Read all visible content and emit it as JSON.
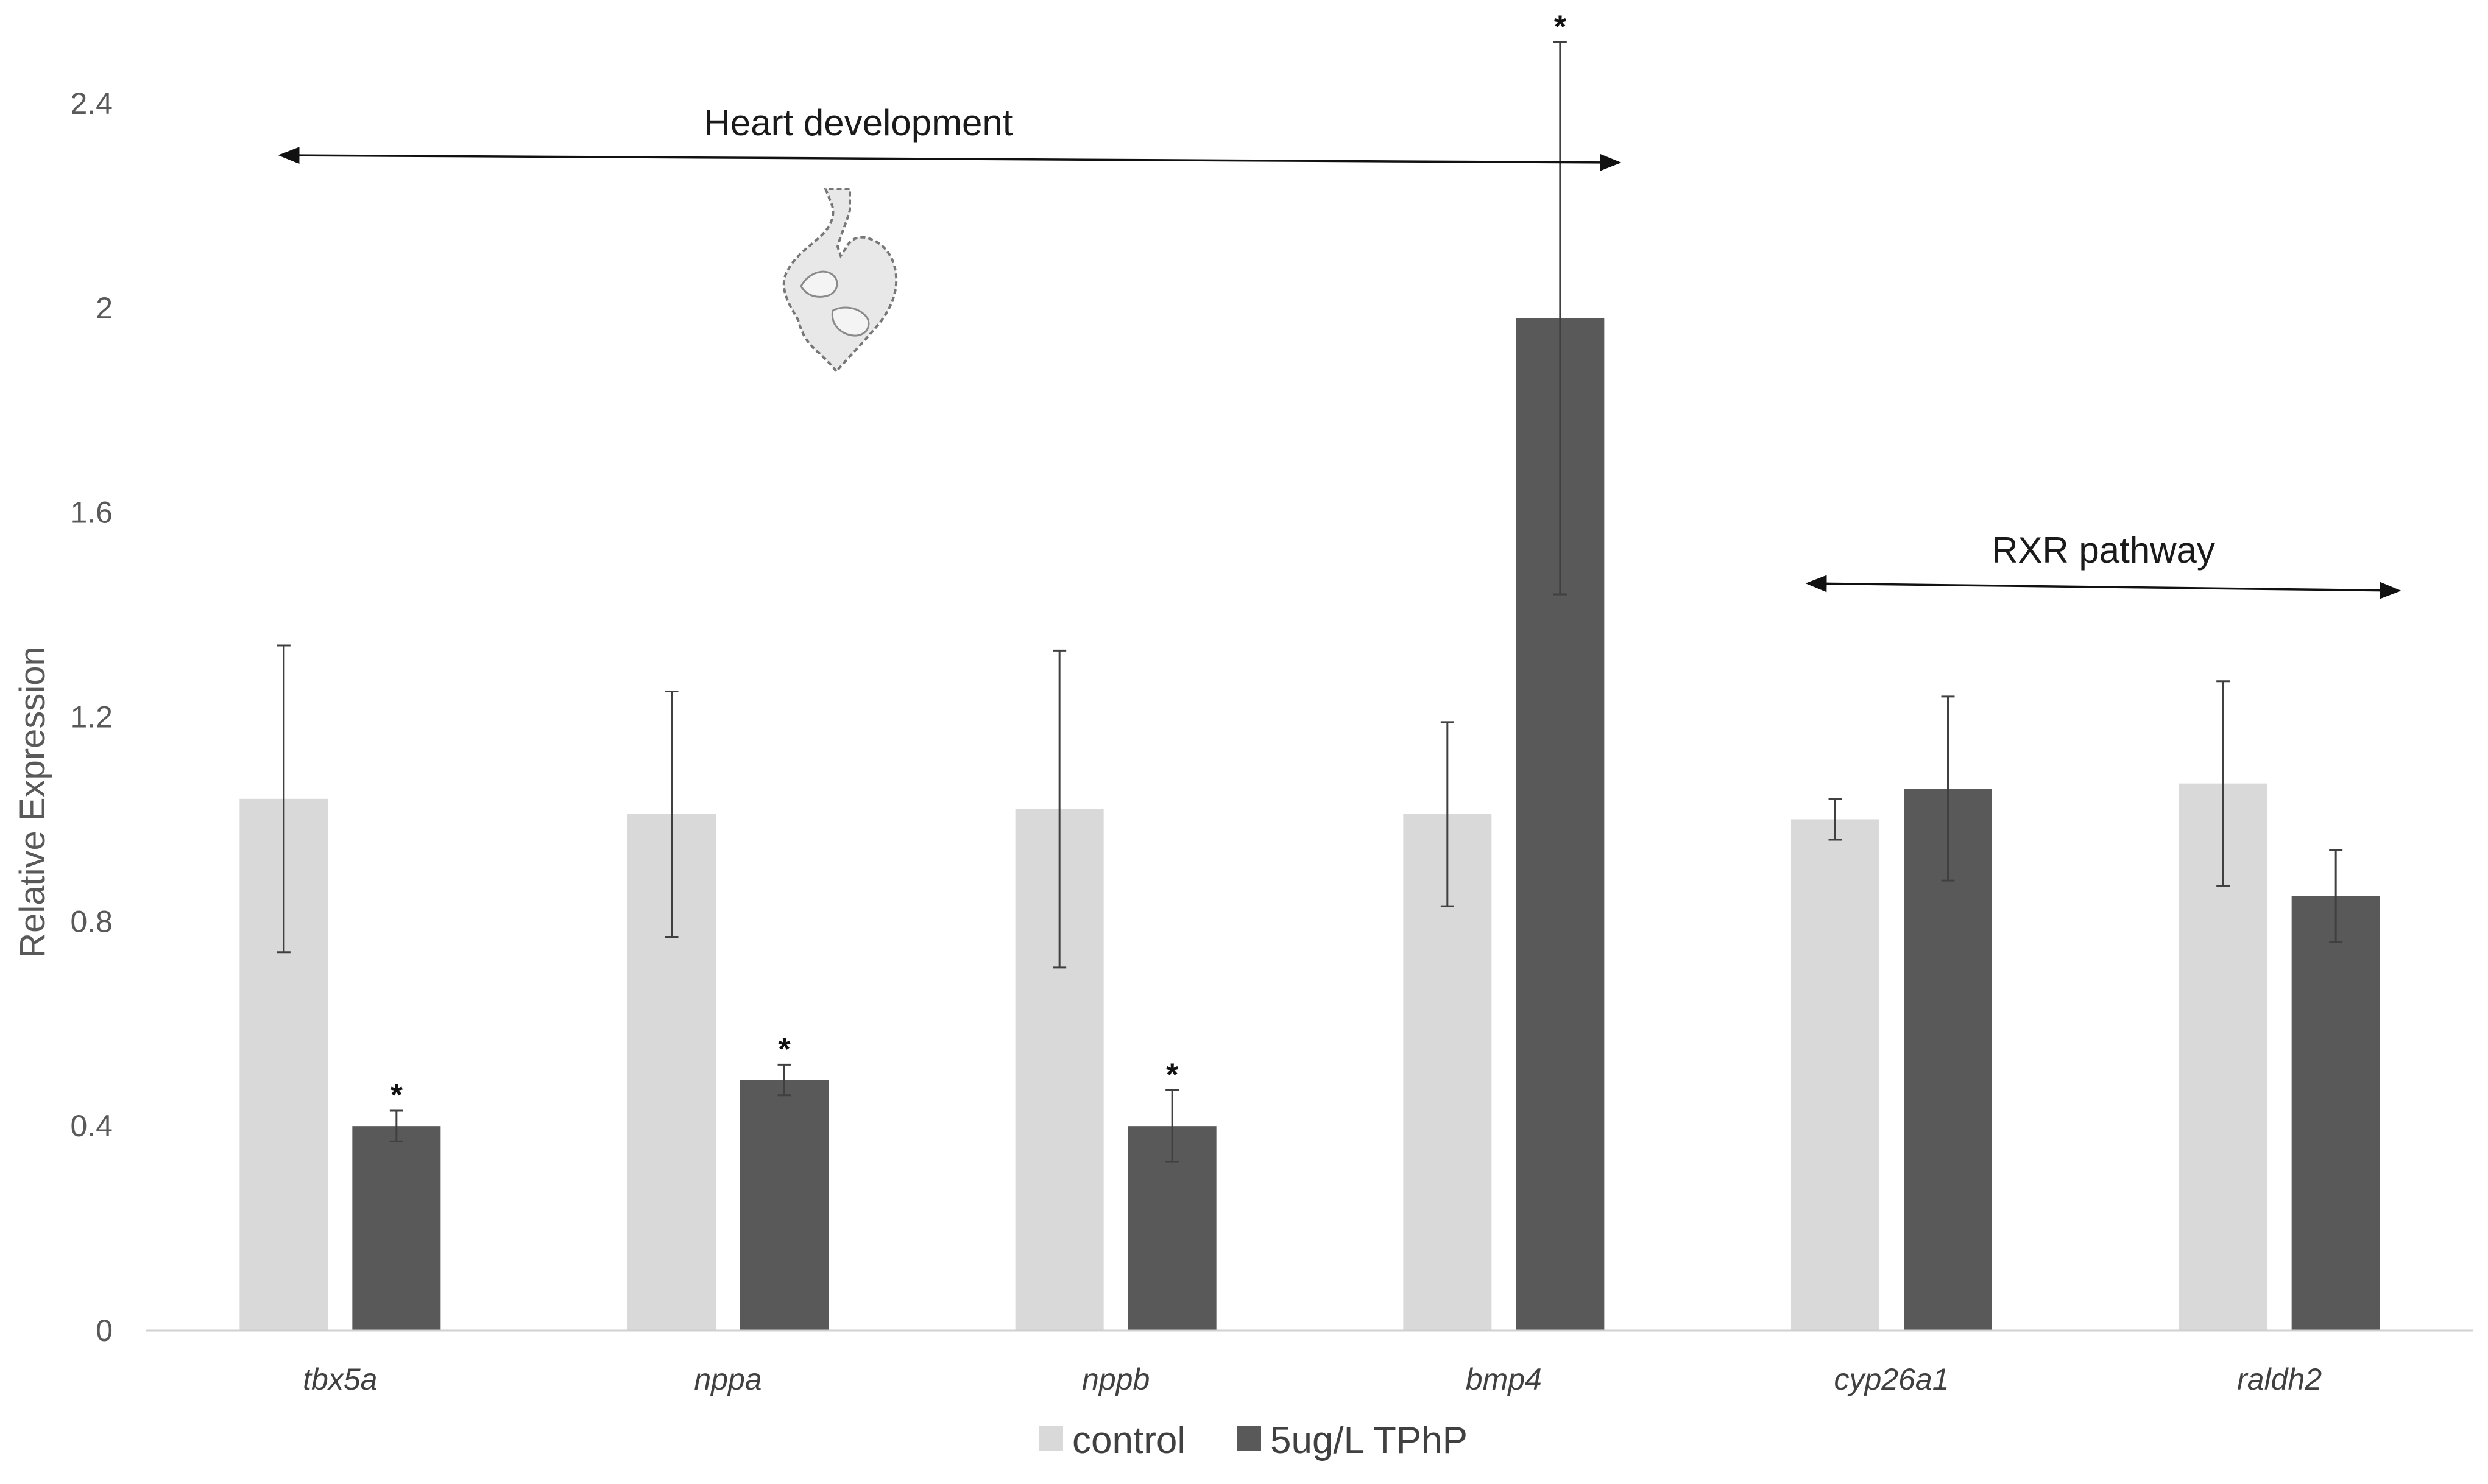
{
  "chart_data": {
    "type": "bar",
    "title": "",
    "xlabel": "",
    "ylabel": "Relative Expression",
    "ylim": [
      0,
      2.4
    ],
    "yticks": [
      0,
      0.4,
      0.8,
      1.2,
      1.6,
      2,
      2.4
    ],
    "ytick_labels": [
      "0",
      "0.4",
      "0.8",
      "1.2",
      "1.6",
      "2",
      "2.4"
    ],
    "grid": false,
    "legend_position": "bottom",
    "categories": [
      "tbx5a",
      "nppa",
      "nppb",
      "bmp4",
      "cyp26a1",
      "raldh2"
    ],
    "series": [
      {
        "name": "control",
        "color": "#d9d9d9",
        "values": [
          1.04,
          1.01,
          1.02,
          1.01,
          1.0,
          1.07
        ],
        "error": [
          0.3,
          0.24,
          0.31,
          0.18,
          0.04,
          0.2
        ],
        "significant": [
          false,
          false,
          false,
          false,
          false,
          false
        ]
      },
      {
        "name": "5ug/L TPhP",
        "color": "#595959",
        "values": [
          0.4,
          0.49,
          0.4,
          1.98,
          1.06,
          0.85
        ],
        "error": [
          0.03,
          0.03,
          0.07,
          0.54,
          0.18,
          0.09
        ],
        "significant": [
          true,
          true,
          true,
          true,
          false,
          false
        ]
      }
    ],
    "significance_marker": "*",
    "annotations": [
      {
        "label": "Heart development",
        "from_category": "tbx5a",
        "to_category": "bmp4"
      },
      {
        "label": "RXR pathway",
        "from_category": "cyp26a1",
        "to_category": "raldh2"
      }
    ]
  },
  "icons": {
    "heart": "heart-development-illustration"
  }
}
